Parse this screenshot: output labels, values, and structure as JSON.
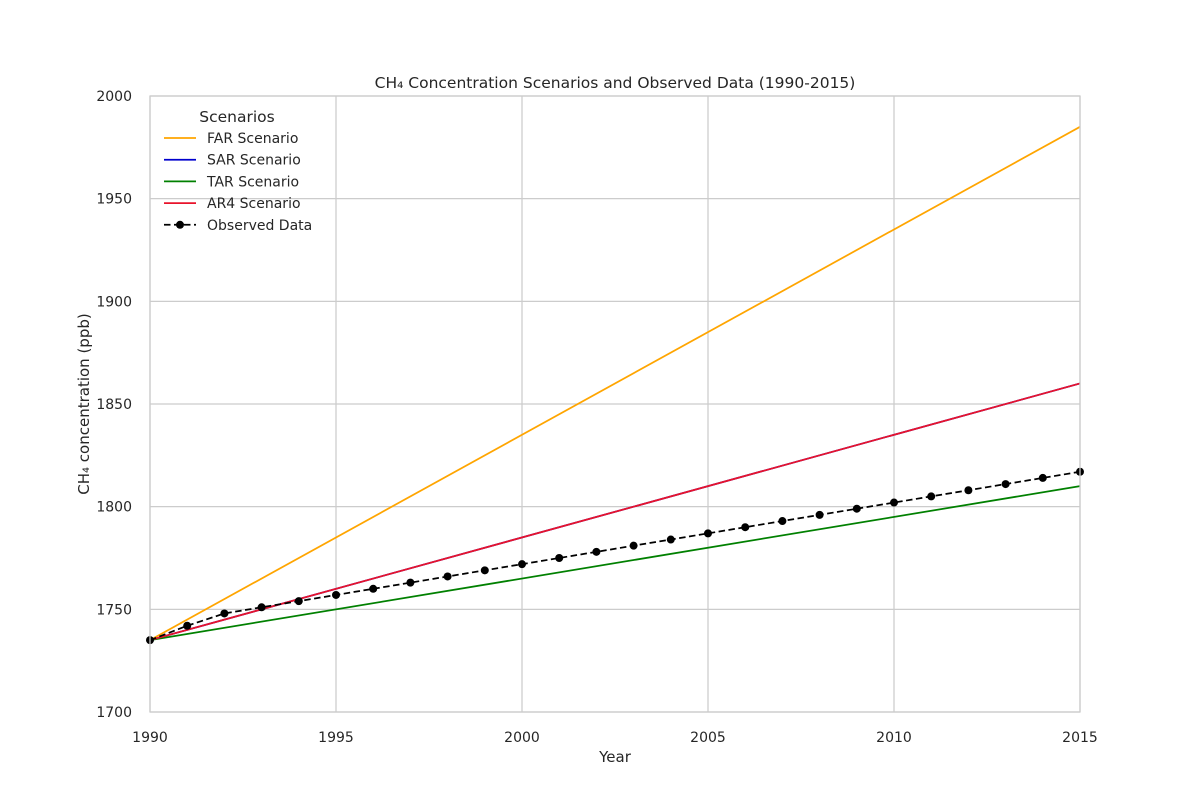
{
  "chart_data": {
    "type": "line",
    "title": "CH₄ Concentration Scenarios and Observed Data (1990-2015)",
    "xlabel": "Year",
    "ylabel": "CH₄ concentration (ppb)",
    "xlim": [
      1990,
      2015
    ],
    "ylim": [
      1700,
      2000
    ],
    "xticks": [
      1990,
      1995,
      2000,
      2005,
      2010,
      2015
    ],
    "yticks": [
      1700,
      1750,
      1800,
      1850,
      1900,
      1950,
      2000
    ],
    "grid": true,
    "legend": {
      "title": "Scenarios",
      "placement": "top-left"
    },
    "series": [
      {
        "name": "FAR Scenario",
        "color": "#FFA500",
        "style": "solid",
        "x": [
          1990,
          2015
        ],
        "y": [
          1735,
          1985
        ]
      },
      {
        "name": "SAR Scenario",
        "color": "#0000CD",
        "style": "solid",
        "x": [
          1990,
          2015
        ],
        "y": [
          1735,
          1860
        ]
      },
      {
        "name": "TAR Scenario",
        "color": "#008000",
        "style": "solid",
        "x": [
          1990,
          2015
        ],
        "y": [
          1735,
          1810
        ]
      },
      {
        "name": "AR4 Scenario",
        "color": "#E8132B",
        "style": "solid",
        "x": [
          1990,
          2015
        ],
        "y": [
          1735,
          1860
        ]
      },
      {
        "name": "Observed Data",
        "color": "#000000",
        "style": "dashed",
        "marker": "circle",
        "x": [
          1990,
          1991,
          1992,
          1993,
          1994,
          1995,
          1996,
          1997,
          1998,
          1999,
          2000,
          2001,
          2002,
          2003,
          2004,
          2005,
          2006,
          2007,
          2008,
          2009,
          2010,
          2011,
          2012,
          2013,
          2014,
          2015
        ],
        "y": [
          1735,
          1742,
          1748,
          1751,
          1754,
          1757,
          1760,
          1763,
          1766,
          1769,
          1772,
          1775,
          1778,
          1781,
          1784,
          1787,
          1790,
          1793,
          1796,
          1799,
          1802,
          1805,
          1808,
          1811,
          1814,
          1817
        ]
      }
    ]
  }
}
